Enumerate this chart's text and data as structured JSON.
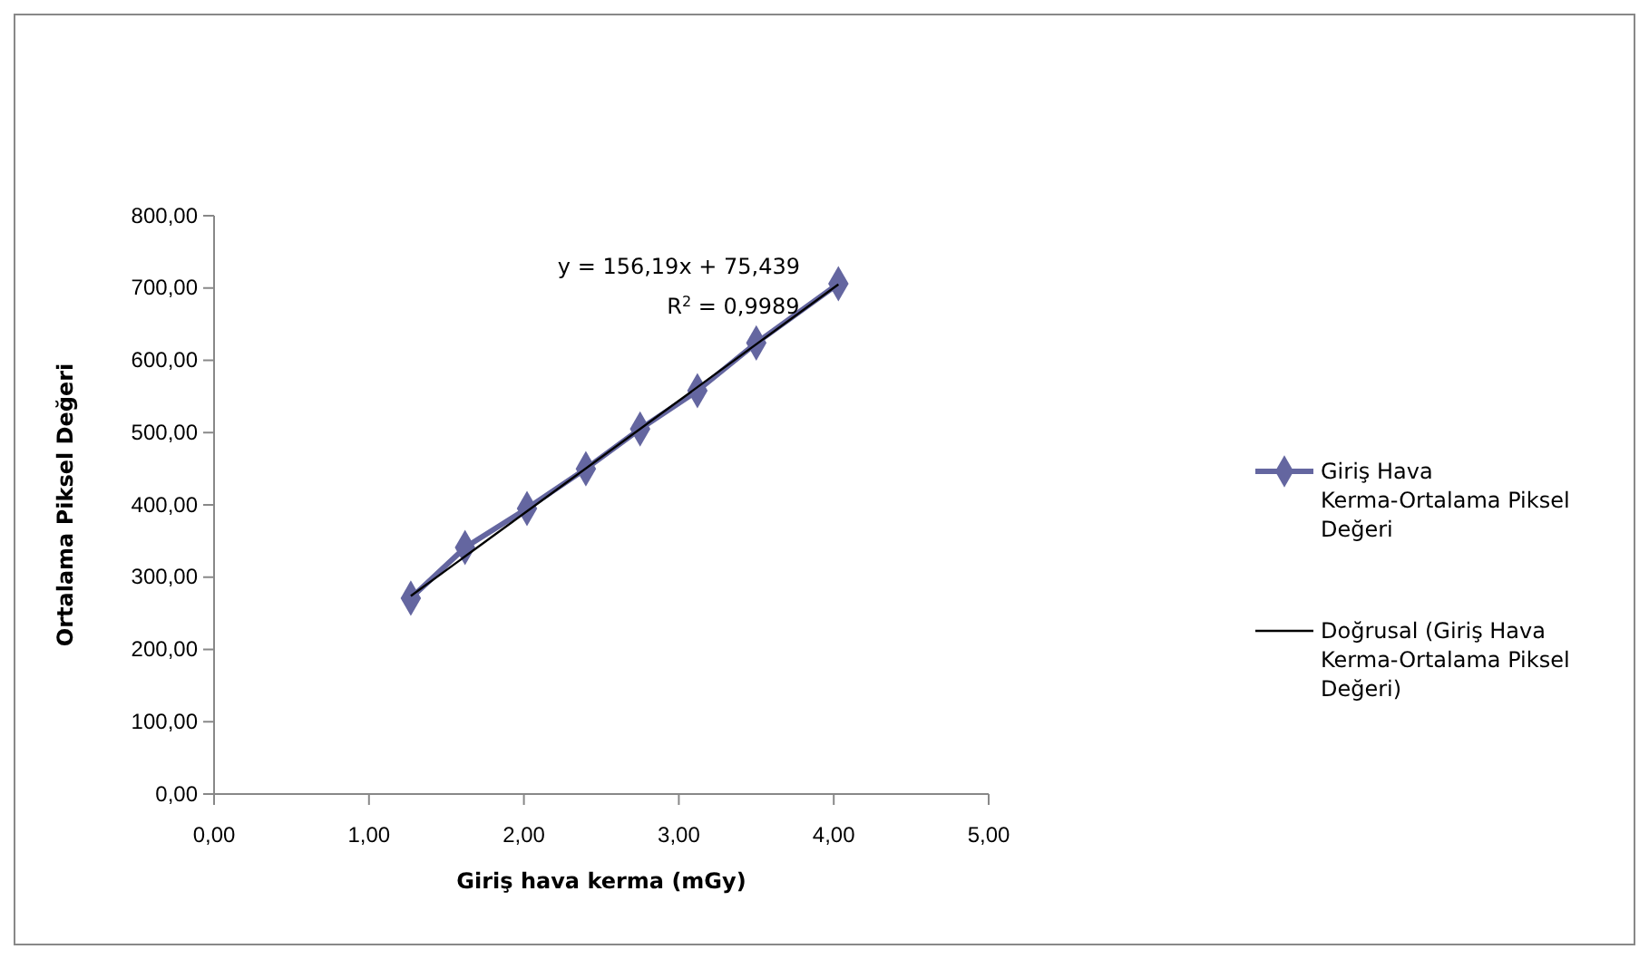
{
  "chart_data": {
    "type": "line",
    "xlabel": "Giriş hava kerma (mGy)",
    "ylabel": "Ortalama Piksel Değeri",
    "xlim": [
      0,
      5
    ],
    "ylim": [
      0,
      800
    ],
    "xticks": [
      {
        "value": 0,
        "label": "0,00"
      },
      {
        "value": 1,
        "label": "1,00"
      },
      {
        "value": 2,
        "label": "2,00"
      },
      {
        "value": 3,
        "label": "3,00"
      },
      {
        "value": 4,
        "label": "4,00"
      },
      {
        "value": 5,
        "label": "5,00"
      }
    ],
    "yticks": [
      {
        "value": 0,
        "label": "0,00"
      },
      {
        "value": 100,
        "label": "100,00"
      },
      {
        "value": 200,
        "label": "200,00"
      },
      {
        "value": 300,
        "label": "300,00"
      },
      {
        "value": 400,
        "label": "400,00"
      },
      {
        "value": 500,
        "label": "500,00"
      },
      {
        "value": 600,
        "label": "600,00"
      },
      {
        "value": 700,
        "label": "700,00"
      },
      {
        "value": 800,
        "label": "800,00"
      }
    ],
    "series": [
      {
        "name": "Giriş Hava Kerma-Ortalama Piksel Değeri",
        "color": "#6466a0",
        "marker": "diamond",
        "x": [
          1.27,
          1.62,
          2.02,
          2.4,
          2.75,
          3.12,
          3.5,
          4.03
        ],
        "values": [
          271,
          341,
          395,
          450,
          505,
          558,
          624,
          706
        ]
      },
      {
        "name": "Doğrusal (Giriş Hava Kerma-Ortalama Piksel Değeri)",
        "color": "#000000",
        "marker": "none",
        "x": [
          1.27,
          4.03
        ],
        "values": [
          274,
          705
        ]
      }
    ],
    "annotations": [
      "y = 156,19x + 75,439",
      "R$^{2}$ = 0,9989"
    ],
    "legend": "right",
    "grid": false
  }
}
